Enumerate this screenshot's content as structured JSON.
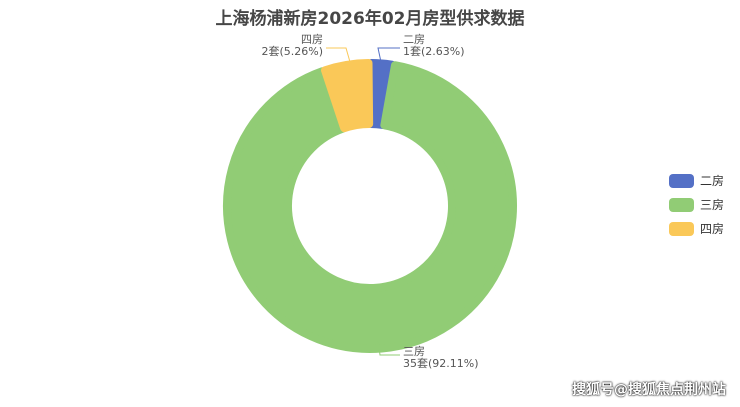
{
  "chart_data": {
    "type": "pie",
    "variant": "donut",
    "title": "上海杨浦新房2026年02月房型供求数据",
    "categories": [
      "二房",
      "三房",
      "四房"
    ],
    "values": [
      1,
      35,
      2
    ],
    "percents": [
      "2.63%",
      "92.11%",
      "5.26%"
    ],
    "labels": [
      "1套(2.63%)",
      "35套(92.11%)",
      "2套(5.26%)"
    ],
    "colors": [
      "#5470c6",
      "#91cc75",
      "#fac858"
    ],
    "legend_position": "right"
  },
  "watermark": "搜狐号@搜狐焦点荆州站"
}
